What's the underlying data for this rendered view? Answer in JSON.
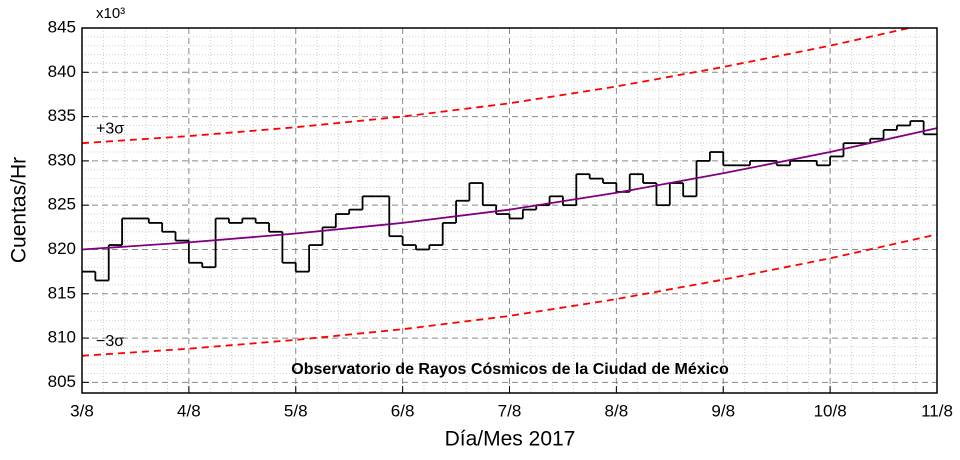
{
  "chart_data": {
    "type": "step",
    "axis_multiplier": "x10³",
    "xlabel": "Día/Mes 2017",
    "ylabel": "Cuentas/Hr",
    "annotations": [
      "Observatorio de Rayos Cósmicos de la Ciudad de México"
    ],
    "xlim": [
      3,
      11
    ],
    "ylim": [
      803.8,
      845
    ],
    "xticks": [
      {
        "value": 3,
        "label": "3/8"
      },
      {
        "value": 4,
        "label": "4/8"
      },
      {
        "value": 5,
        "label": "5/8"
      },
      {
        "value": 6,
        "label": "6/8"
      },
      {
        "value": 7,
        "label": "7/8"
      },
      {
        "value": 8,
        "label": "8/8"
      },
      {
        "value": 9,
        "label": "9/8"
      },
      {
        "value": 10,
        "label": "10/8"
      },
      {
        "value": 11,
        "label": "11/8"
      }
    ],
    "yticks": [
      805,
      810,
      815,
      820,
      825,
      830,
      835,
      840,
      845
    ],
    "grid": true,
    "series": [
      {
        "type": "step",
        "color": "#000000",
        "x": [
          3,
          3.125,
          3.25,
          3.375,
          3.5,
          3.625,
          3.75,
          3.875,
          4,
          4.125,
          4.25,
          4.375,
          4.5,
          4.625,
          4.75,
          4.875,
          5,
          5.125,
          5.25,
          5.375,
          5.5,
          5.625,
          5.75,
          5.875,
          6,
          6.125,
          6.25,
          6.375,
          6.5,
          6.625,
          6.75,
          6.875,
          7,
          7.125,
          7.25,
          7.375,
          7.5,
          7.625,
          7.75,
          7.875,
          8,
          8.125,
          8.25,
          8.375,
          8.5,
          8.625,
          8.75,
          8.875,
          9,
          9.125,
          9.25,
          9.375,
          9.5,
          9.625,
          9.75,
          9.875,
          10,
          10.125,
          10.25,
          10.375,
          10.5,
          10.625,
          10.75,
          10.875
        ],
        "values": [
          817.5,
          816.5,
          820.5,
          823.5,
          823.5,
          823,
          822,
          821,
          818.5,
          818,
          823.5,
          823,
          823.5,
          823,
          822,
          818.5,
          817.5,
          820.5,
          822.5,
          824,
          824.5,
          826,
          826,
          821.5,
          820.5,
          820,
          820.5,
          823,
          825.5,
          827.5,
          825,
          824,
          823.5,
          824.5,
          825,
          826,
          825,
          828.5,
          828,
          827.5,
          826.5,
          828.5,
          827.5,
          825,
          827.5,
          826,
          830,
          831,
          829.5,
          829.5,
          830,
          830,
          829.5,
          830,
          830,
          829.5,
          830.5,
          832,
          832,
          832.5,
          833.5,
          834,
          834.5,
          833
        ]
      },
      {
        "type": "line",
        "color": "#800080",
        "style": "solid",
        "x": [
          3,
          4,
          5,
          6,
          7,
          8,
          9,
          10,
          11
        ],
        "values": [
          820,
          820.8,
          821.8,
          823,
          824.5,
          826.4,
          828.6,
          831,
          833.7
        ]
      },
      {
        "type": "line",
        "name": "+3σ",
        "color": "#ff0000",
        "style": "dashed",
        "x": [
          3,
          4,
          5,
          6,
          7,
          8,
          9,
          10,
          11
        ],
        "values": [
          832,
          832.8,
          833.8,
          835,
          836.5,
          838.4,
          840.6,
          843,
          845.7
        ]
      },
      {
        "type": "line",
        "name": "−3σ",
        "color": "#ff0000",
        "style": "dashed",
        "x": [
          3,
          4,
          5,
          6,
          7,
          8,
          9,
          10,
          11
        ],
        "values": [
          808,
          808.8,
          809.8,
          811,
          812.5,
          814.4,
          816.6,
          819,
          821.7
        ]
      }
    ]
  }
}
